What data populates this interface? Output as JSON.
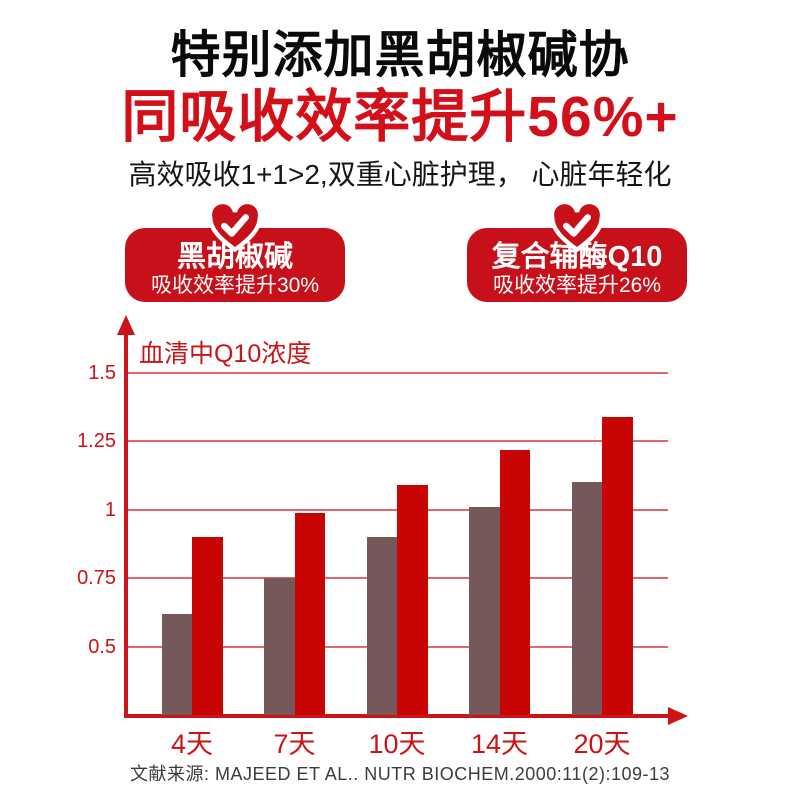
{
  "page": {
    "title_line1": "特别添加黑胡椒碱协",
    "title_line2": "同吸收效率提升56%+",
    "subtitle": "高效吸收1+1>2,双重心脏护理， 心脏年轻化",
    "source": "文献来源: MAJEED ET AL.. NUTR BIOCHEM.2000:11(2):109-13"
  },
  "badges": [
    {
      "icon": "heart-check-icon",
      "title": "黑胡椒碱",
      "subtitle": "吸收效率提升30%"
    },
    {
      "icon": "heart-check-icon",
      "title": "复合辅酶Q10",
      "subtitle": "吸收效率提升26%"
    }
  ],
  "colors": {
    "text_black": "#0a0a0a",
    "title_red": "#d30f19",
    "badge_red": "#c8101b",
    "axis_red": "#cc1418",
    "grid_red": "#e06868",
    "bar_red": "#c90404",
    "bar_gray": "#75585a",
    "footer_gray": "#3c3c3c"
  },
  "chart_data": {
    "type": "bar",
    "title": "血清中Q10浓度",
    "categories": [
      "4天",
      "7天",
      "10天",
      "14天",
      "20天"
    ],
    "series": [
      {
        "id": "series-1",
        "color_key": "bar_gray",
        "values": [
          0.62,
          0.75,
          0.9,
          1.01,
          1.1
        ]
      },
      {
        "id": "series-2",
        "color_key": "bar_red",
        "values": [
          0.9,
          0.99,
          1.09,
          1.22,
          1.34
        ]
      }
    ],
    "ylim": [
      0.25,
      1.5
    ],
    "yticks": [
      0.5,
      0.75,
      1,
      1.25,
      1.5
    ],
    "ytick_labels": [
      "0.5",
      "0.75",
      "1",
      "1.25",
      "1.5"
    ],
    "xlabel": "",
    "ylabel": "",
    "grid": true,
    "legend": "none"
  }
}
